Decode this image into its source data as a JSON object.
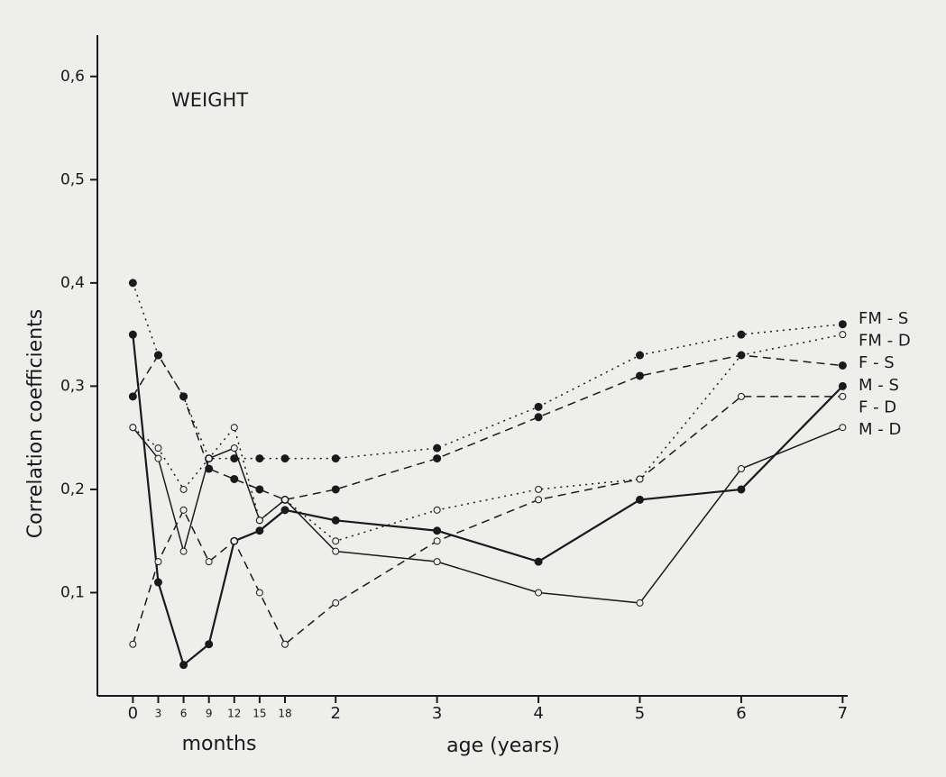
{
  "chart_data": {
    "type": "line",
    "title": "WEIGHT",
    "ylabel": "Correlation coefficients",
    "xlabel": "age (years)",
    "xlabel_months": "months",
    "x": [
      0,
      0.25,
      0.5,
      0.75,
      1,
      1.25,
      1.5,
      2,
      3,
      4,
      5,
      6,
      7
    ],
    "xlim": [
      -0.35,
      7.05
    ],
    "xticks": [
      {
        "value": 0,
        "label": "0"
      },
      {
        "value": 0.25,
        "label": "3"
      },
      {
        "value": 0.5,
        "label": "6"
      },
      {
        "value": 0.75,
        "label": "9"
      },
      {
        "value": 1,
        "label": "12"
      },
      {
        "value": 1.25,
        "label": "15"
      },
      {
        "value": 1.5,
        "label": "18"
      },
      2,
      3,
      4,
      5,
      6,
      7
    ],
    "ylim": [
      0,
      0.64
    ],
    "yticks": [
      {
        "value": 0.1,
        "label": "0,1"
      },
      {
        "value": 0.2,
        "label": "0,2"
      },
      {
        "value": 0.3,
        "label": "0,3"
      },
      {
        "value": 0.4,
        "label": "0,4"
      },
      {
        "value": 0.5,
        "label": "0,5"
      },
      {
        "value": 0.6,
        "label": "0,6"
      }
    ],
    "series": [
      {
        "name": "FM - S",
        "color": "#1a1a1a",
        "line_style": "dotted",
        "marker": "filled",
        "values": [
          0.4,
          0.33,
          0.29,
          0.23,
          0.23,
          0.23,
          0.23,
          0.23,
          0.24,
          0.28,
          0.33,
          0.35,
          0.36
        ]
      },
      {
        "name": "FM - D",
        "color": "#1a1a1a",
        "line_style": "dotted",
        "marker": "open",
        "values": [
          0.26,
          0.24,
          0.2,
          0.23,
          0.26,
          0.17,
          0.19,
          0.15,
          0.18,
          0.2,
          0.21,
          0.33,
          0.35
        ]
      },
      {
        "name": "F - S",
        "color": "#1a1a1a",
        "line_style": "dashed",
        "marker": "filled",
        "values": [
          0.29,
          0.33,
          0.29,
          0.22,
          0.21,
          0.2,
          0.19,
          0.2,
          0.23,
          0.27,
          0.31,
          0.33,
          0.32
        ]
      },
      {
        "name": "M - S",
        "color": "#1a1a1a",
        "line_style": "solid",
        "marker": "filled",
        "values": [
          0.35,
          0.11,
          0.03,
          0.05,
          0.15,
          0.16,
          0.18,
          0.17,
          0.16,
          0.13,
          0.19,
          0.2,
          0.3
        ]
      },
      {
        "name": "F - D",
        "color": "#1a1a1a",
        "line_style": "dashed",
        "marker": "open",
        "values": [
          0.05,
          0.13,
          0.18,
          0.13,
          0.15,
          0.1,
          0.05,
          0.09,
          0.15,
          0.19,
          0.21,
          0.29,
          0.29
        ]
      },
      {
        "name": "M - D",
        "color": "#1a1a1a",
        "line_style": "solid",
        "marker": "open",
        "values": [
          0.26,
          0.23,
          0.14,
          0.23,
          0.24,
          0.17,
          0.19,
          0.14,
          0.13,
          0.1,
          0.09,
          0.22,
          0.26
        ]
      }
    ]
  }
}
